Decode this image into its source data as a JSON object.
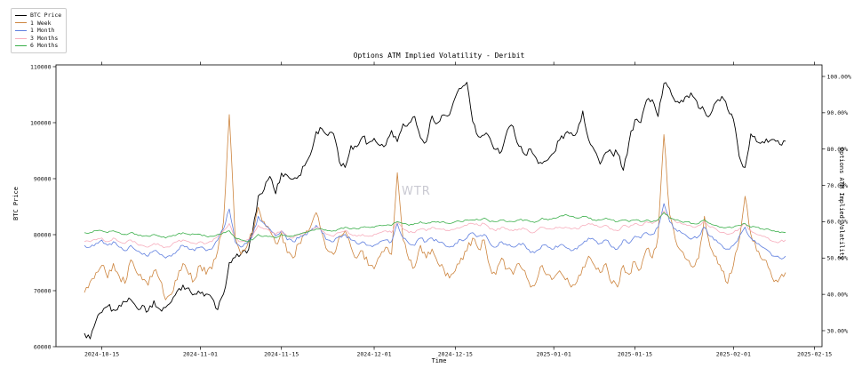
{
  "figure": {
    "watermark": "WTR",
    "background_color": "#ffffff",
    "axis_color": "#000000"
  },
  "chart_data": {
    "type": "line",
    "title": "Options ATM Implied Volatility - Deribit",
    "xlabel": "Time",
    "ylabel_left": "BTC Price",
    "ylabel_right": "Options ATM Implied Volatility",
    "grid": false,
    "legend_position": "upper left, outside plot",
    "x_start_date": "2024-10-12",
    "x_frequency": "daily",
    "x_axis_range": [
      "2024-10-07",
      "2025-02-16"
    ],
    "x_tick_labels": [
      "2024-10-15",
      "2024-11-01",
      "2024-11-15",
      "2024-12-01",
      "2024-12-15",
      "2025-01-01",
      "2025-01-15",
      "2025-02-01",
      "2025-02-15"
    ],
    "y_left_axis": {
      "min": 60000,
      "max": 110000,
      "tick_labels": [
        "60000",
        "70000",
        "80000",
        "90000",
        "100000",
        "110000"
      ]
    },
    "y_right_axis": {
      "min_pct": 30,
      "max_pct": 100,
      "tick_labels": [
        "30.00%",
        "40.00%",
        "50.00%",
        "60.00%",
        "70.00%",
        "80.00%",
        "90.00%",
        "100.00%"
      ]
    },
    "series": [
      {
        "name": "BTC Price",
        "axis": "left",
        "color": "#000000",
        "unit": "USD",
        "values": [
          62400,
          61400,
          64600,
          66100,
          67200,
          66600,
          67400,
          68000,
          68400,
          67000,
          67400,
          66400,
          68200,
          66700,
          67000,
          68000,
          69900,
          71000,
          70500,
          69400,
          69500,
          69400,
          68700,
          66600,
          69400,
          75000,
          75900,
          76500,
          76700,
          80400,
          86900,
          88000,
          90400,
          87300,
          91000,
          90600,
          89900,
          90500,
          92300,
          94300,
          98400,
          98900,
          97700,
          98000,
          93000,
          92000,
          95900,
          95700,
          97500,
          96400,
          97200,
          95900,
          96000,
          98600,
          96600,
          99800,
          99900,
          101100,
          97300,
          96600,
          101200,
          100000,
          101400,
          101400,
          104500,
          106100,
          107200,
          100200,
          97500,
          97800,
          97200,
          95200,
          94900,
          98700,
          99300,
          95800,
          94300,
          95300,
          93600,
          92700,
          93400,
          94600,
          96900,
          98100,
          98200,
          98300,
          102100,
          97000,
          95100,
          92600,
          94700,
          94600,
          94500,
          91500,
          96600,
          100500,
          100000,
          104000,
          104100,
          101100,
          107000,
          106100,
          103700,
          104000,
          104800,
          104700,
          102600,
          102100,
          101400,
          103700,
          104700,
          102400,
          100600,
          94000,
          92000,
          98000,
          96600,
          96600,
          96500,
          97000,
          96100,
          96700
        ]
      },
      {
        "name": "1 Week",
        "axis": "right",
        "color": "#cd853f",
        "unit": "%",
        "values": [
          40.5,
          43.5,
          46,
          48,
          44.5,
          48.5,
          45,
          43,
          49.5,
          46,
          44,
          42.5,
          46.5,
          44,
          38.5,
          40,
          44,
          48.5,
          45.5,
          44,
          48,
          45.5,
          47,
          52,
          60,
          89.5,
          56,
          51,
          53,
          57,
          64,
          60,
          57.5,
          54,
          57,
          51.5,
          50,
          54,
          56.5,
          58.5,
          62.5,
          57,
          52,
          51,
          56,
          57.5,
          53,
          50,
          52,
          48,
          47,
          50.5,
          53,
          51,
          73.5,
          55,
          49.5,
          47.5,
          53.5,
          50,
          52.5,
          48.5,
          47,
          44.5,
          46.5,
          50,
          52,
          55.5,
          52.5,
          55,
          47.5,
          45.5,
          50,
          47,
          45.5,
          48.5,
          46.5,
          42,
          43.5,
          48,
          45.5,
          44.5,
          46.5,
          44,
          42,
          43.5,
          47.5,
          50.5,
          48,
          46,
          48.5,
          43,
          42,
          48,
          45.5,
          49,
          47,
          52.5,
          50,
          56,
          84,
          62,
          55,
          52,
          49.5,
          47.5,
          50,
          61.5,
          53,
          50.5,
          46.5,
          43,
          48,
          55,
          67,
          56.5,
          52,
          49.5,
          47.5,
          43.5,
          44.5,
          46
        ]
      },
      {
        "name": "1 Month",
        "axis": "right",
        "color": "#5f7fdf",
        "unit": "%",
        "values": [
          53.5,
          53,
          54,
          55,
          53.5,
          54.5,
          53,
          52,
          53.5,
          52,
          51,
          50.5,
          52,
          51,
          50,
          50.5,
          52,
          53.5,
          52.5,
          52,
          53,
          52,
          52.5,
          55,
          58,
          63.5,
          54.5,
          53,
          54,
          56,
          61.5,
          59.5,
          58,
          56,
          57.5,
          55,
          54.5,
          55.5,
          56.5,
          57.5,
          59,
          57,
          55,
          54.5,
          56,
          56.5,
          55,
          54,
          54.5,
          53.5,
          53.5,
          54.5,
          55,
          54.5,
          59.5,
          55.5,
          54,
          53.5,
          55.5,
          54.5,
          55.5,
          54.5,
          54,
          53,
          54,
          55,
          55.5,
          57,
          56,
          56.5,
          54,
          53,
          54.5,
          53.5,
          53,
          54,
          53.5,
          51.5,
          52,
          53.5,
          53,
          52.5,
          53.5,
          53,
          52,
          52.5,
          54,
          55.5,
          55,
          54,
          55,
          53,
          52.5,
          55,
          54,
          56,
          55.5,
          57,
          56.5,
          58.5,
          65,
          60,
          58,
          57,
          56,
          55.5,
          56,
          58.5,
          56,
          55,
          53.5,
          52.5,
          53.5,
          56,
          58.5,
          55.5,
          54,
          53,
          52,
          50.5,
          50,
          50.5
        ]
      },
      {
        "name": "3 Months",
        "axis": "right",
        "color": "#f7aebd",
        "unit": "%",
        "values": [
          54.5,
          54.5,
          55,
          55.5,
          54.5,
          55.5,
          54.5,
          54,
          55,
          54,
          53.5,
          53,
          54,
          53.5,
          53,
          53.5,
          54.5,
          55,
          54.5,
          54,
          54.5,
          54,
          54.5,
          56,
          57.5,
          59.5,
          55.5,
          54.5,
          55,
          56,
          59,
          58,
          57.5,
          56.5,
          57.5,
          56,
          55.5,
          56.5,
          57,
          57.5,
          58.5,
          57.5,
          56.5,
          56,
          57,
          57.5,
          56.5,
          56,
          56.5,
          56,
          56.5,
          57,
          57.5,
          57,
          60,
          58,
          57,
          57,
          58,
          57.5,
          58.5,
          58,
          58,
          57.5,
          58,
          58.5,
          59,
          59.5,
          59,
          59.5,
          58,
          57.5,
          58.5,
          58,
          57.5,
          58,
          58,
          57,
          57.5,
          58.5,
          58,
          58,
          58.5,
          58.5,
          58,
          58,
          59,
          59.5,
          59,
          58.5,
          59,
          58,
          57.5,
          59,
          58.5,
          59.5,
          59,
          60,
          59.5,
          60.5,
          63,
          61,
          60,
          59.5,
          59,
          58.5,
          59,
          60,
          58.5,
          58,
          57,
          56.5,
          57,
          58,
          59.5,
          57.5,
          56.5,
          56,
          55.5,
          54.5,
          54.5,
          55
        ]
      },
      {
        "name": "6 Months",
        "axis": "right",
        "color": "#3aaf4a",
        "unit": "%",
        "values": [
          57,
          57,
          57.5,
          57.5,
          57,
          57.5,
          57,
          56.5,
          57,
          56.5,
          56,
          56,
          56.5,
          56,
          55.5,
          56,
          56.5,
          57,
          56.5,
          56.5,
          56.5,
          56,
          56,
          56.5,
          57,
          57.5,
          55.5,
          55,
          54.5,
          55,
          56.5,
          56,
          56,
          55.5,
          56.5,
          56,
          56,
          56.5,
          57,
          57.5,
          58,
          58,
          57.5,
          57.5,
          58,
          58.5,
          58,
          58,
          58.5,
          58.5,
          58.5,
          59,
          59,
          59,
          60,
          59.5,
          59,
          59.5,
          60,
          59.5,
          60,
          60,
          60,
          59.5,
          60,
          60,
          60.5,
          60.5,
          60.5,
          61,
          60,
          60,
          60.5,
          60,
          60,
          60.5,
          60.5,
          60,
          60,
          61,
          60.5,
          61,
          61.5,
          62,
          61.5,
          61,
          61.5,
          61,
          60.5,
          60.5,
          61,
          60.5,
          60,
          60.5,
          60,
          60.5,
          60,
          60.5,
          60,
          60.5,
          62.5,
          61,
          60.5,
          60,
          60,
          59.5,
          59.5,
          60.5,
          59.5,
          59,
          58.5,
          58.5,
          58.5,
          59,
          59.5,
          58.5,
          58.5,
          58,
          58,
          57.5,
          57,
          57
        ]
      }
    ]
  }
}
